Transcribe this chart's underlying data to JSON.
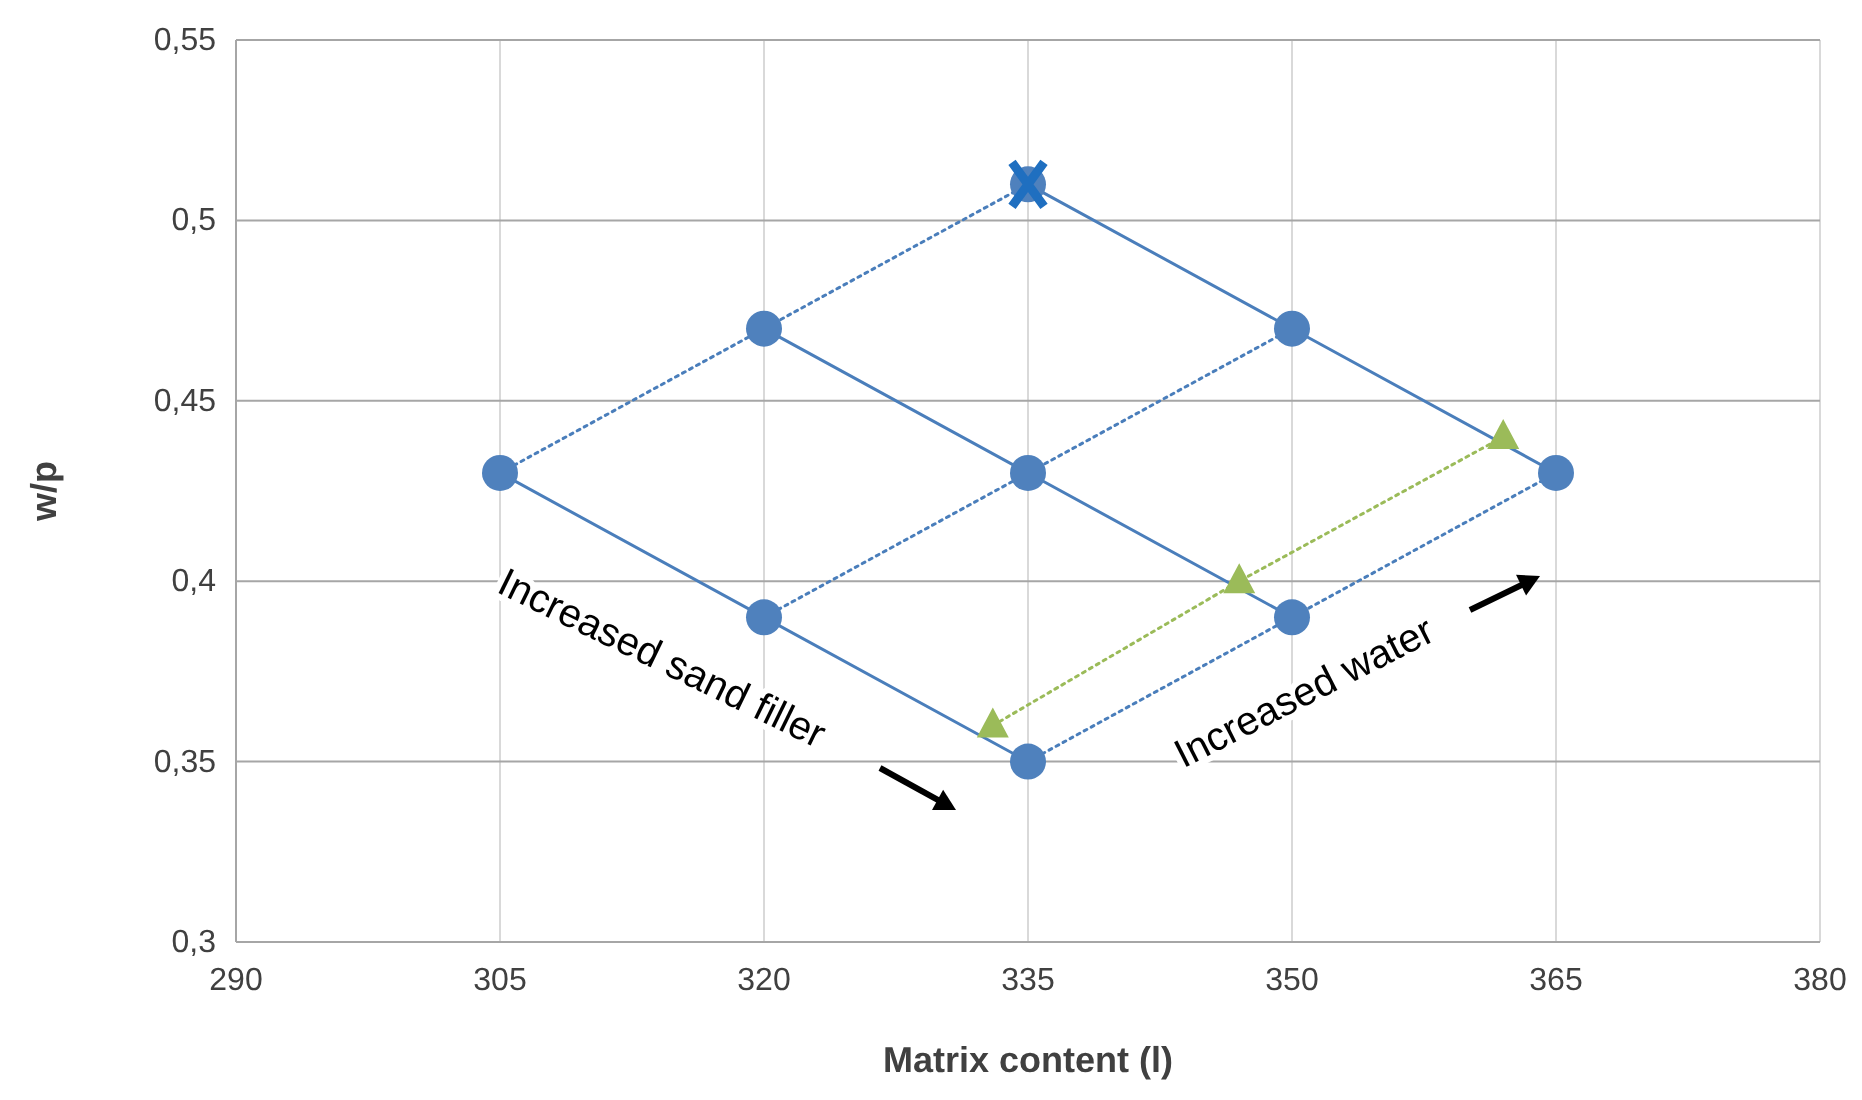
{
  "chart_data": {
    "type": "scatter",
    "xlabel": "Matrix content (l)",
    "ylabel": "w/p",
    "xlim": [
      290,
      380
    ],
    "xticks": [
      290,
      305,
      320,
      335,
      350,
      365,
      380
    ],
    "ylim": [
      0.3,
      0.55
    ],
    "yticks": [
      {
        "value": 0.3,
        "label": "0,3"
      },
      {
        "value": 0.35,
        "label": "0,35"
      },
      {
        "value": 0.4,
        "label": "0,4"
      },
      {
        "value": 0.45,
        "label": "0,45"
      },
      {
        "value": 0.5,
        "label": "0,5"
      },
      {
        "value": 0.55,
        "label": "0,55"
      }
    ],
    "grid": true,
    "annotations": [
      "Increased sand filler",
      "Increased water"
    ],
    "series": [
      {
        "type": "line",
        "color": "#4a7ebb",
        "line_style": "solid",
        "x": [
          335,
          365
        ],
        "values": [
          0.51,
          0.43
        ]
      },
      {
        "type": "line",
        "color": "#4a7ebb",
        "line_style": "solid",
        "x": [
          320,
          350
        ],
        "values": [
          0.47,
          0.39
        ]
      },
      {
        "type": "line",
        "color": "#4a7ebb",
        "line_style": "solid",
        "x": [
          305,
          335
        ],
        "values": [
          0.43,
          0.35
        ]
      },
      {
        "type": "line",
        "color": "#4a7ebb",
        "line_style": "dotted",
        "x": [
          305,
          335
        ],
        "values": [
          0.43,
          0.51
        ]
      },
      {
        "type": "line",
        "color": "#4a7ebb",
        "line_style": "dotted",
        "x": [
          320,
          350
        ],
        "values": [
          0.39,
          0.47
        ]
      },
      {
        "type": "line",
        "color": "#4a7ebb",
        "line_style": "dotted",
        "x": [
          335,
          365
        ],
        "values": [
          0.35,
          0.43
        ]
      },
      {
        "type": "scatter",
        "color": "#4f81bd",
        "marker": "circle",
        "x": [
          305,
          320,
          335,
          320,
          335,
          350,
          335,
          350,
          365
        ],
        "values": [
          0.43,
          0.47,
          0.51,
          0.39,
          0.43,
          0.47,
          0.35,
          0.39,
          0.43
        ]
      },
      {
        "type": "line",
        "color": "#9bbb59",
        "line_style": "dotted",
        "marker": "triangle",
        "x": [
          333,
          347,
          362
        ],
        "values": [
          0.36,
          0.4,
          0.44
        ]
      },
      {
        "type": "scatter",
        "color": "#1f6fc0",
        "marker": "cross",
        "x": [
          335
        ],
        "values": [
          0.51
        ]
      }
    ]
  }
}
